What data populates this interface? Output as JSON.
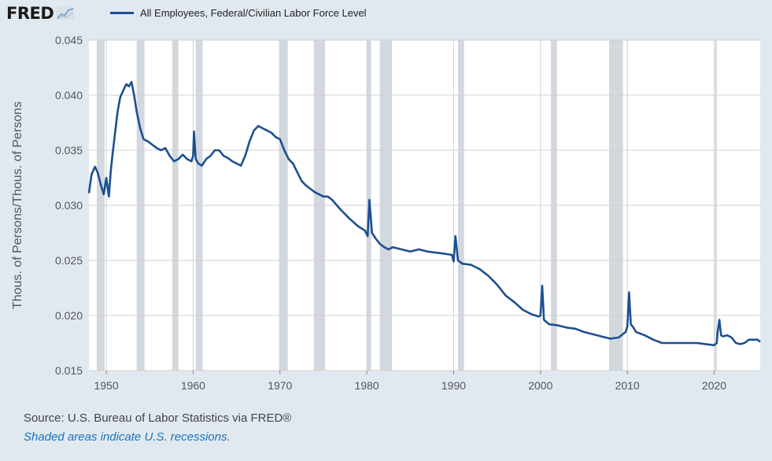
{
  "header": {
    "logo_text": "FRED",
    "logo_icon": "chart-line-icon"
  },
  "legend": {
    "label": "All Employees, Federal/Civilian Labor Force Level",
    "color": "#1d4f91"
  },
  "footer": {
    "source": "Source: U.S. Bureau of Labor Statistics via FRED®",
    "note": "Shaded areas indicate U.S. recessions."
  },
  "colors": {
    "background": "#e1e9f0",
    "plot_background": "#ffffff",
    "grid": "#d0d0d0",
    "recession": "#d3d8de",
    "line": "#1d4f91",
    "note": "#1a73c0"
  },
  "chart_data": {
    "type": "line",
    "ylabel": "Thous. of Persons/Thous. of Persons",
    "xlim": [
      1948,
      2025.3
    ],
    "ylim": [
      0.015,
      0.045
    ],
    "yticks": [
      0.015,
      0.02,
      0.025,
      0.03,
      0.035,
      0.04,
      0.045
    ],
    "ytick_labels": [
      "0.015",
      "0.020",
      "0.025",
      "0.030",
      "0.035",
      "0.040",
      "0.045"
    ],
    "xticks": [
      1950,
      1960,
      1970,
      1980,
      1990,
      2000,
      2010,
      2020
    ],
    "xtick_labels": [
      "1950",
      "1960",
      "1970",
      "1980",
      "1990",
      "2000",
      "2010",
      "2020"
    ],
    "grid": true,
    "recessions": [
      [
        1948.9,
        1949.8
      ],
      [
        1953.5,
        1954.4
      ],
      [
        1957.6,
        1958.3
      ],
      [
        1960.3,
        1961.1
      ],
      [
        1969.9,
        1970.9
      ],
      [
        1973.9,
        1975.2
      ],
      [
        1980.0,
        1980.5
      ],
      [
        1981.5,
        1982.9
      ],
      [
        1990.5,
        1991.2
      ],
      [
        2001.2,
        2001.9
      ],
      [
        2007.9,
        2009.5
      ],
      [
        2020.1,
        2020.3
      ]
    ],
    "series": [
      {
        "name": "All Employees, Federal/Civilian Labor Force Level",
        "x": [
          1948.0,
          1948.3,
          1948.7,
          1949.0,
          1949.4,
          1949.7,
          1950.0,
          1950.3,
          1950.5,
          1950.7,
          1951.0,
          1951.3,
          1951.6,
          1952.0,
          1952.3,
          1952.6,
          1952.9,
          1953.2,
          1953.5,
          1953.9,
          1954.3,
          1954.8,
          1955.3,
          1955.8,
          1956.3,
          1956.8,
          1957.3,
          1957.8,
          1958.3,
          1958.8,
          1959.3,
          1959.8,
          1960.0,
          1960.1,
          1960.3,
          1960.6,
          1961.0,
          1961.5,
          1962.0,
          1962.5,
          1963.0,
          1963.5,
          1964.0,
          1964.5,
          1965.0,
          1965.5,
          1966.0,
          1966.5,
          1967.0,
          1967.5,
          1968.0,
          1968.5,
          1969.0,
          1969.5,
          1970.0,
          1970.5,
          1971.0,
          1971.5,
          1972.0,
          1972.5,
          1973.0,
          1973.5,
          1974.0,
          1974.5,
          1975.0,
          1975.5,
          1976.0,
          1977.0,
          1978.0,
          1979.0,
          1979.8,
          1980.1,
          1980.3,
          1980.6,
          1981.0,
          1981.5,
          1982.0,
          1982.5,
          1983.0,
          1984.0,
          1985.0,
          1986.0,
          1987.0,
          1988.0,
          1989.0,
          1989.8,
          1990.0,
          1990.2,
          1990.5,
          1991.0,
          1992.0,
          1993.0,
          1994.0,
          1995.0,
          1996.0,
          1997.0,
          1998.0,
          1999.0,
          1999.8,
          2000.0,
          2000.2,
          2000.4,
          2000.7,
          2001.0,
          2002.0,
          2003.0,
          2004.0,
          2005.0,
          2006.0,
          2007.0,
          2008.0,
          2009.0,
          2009.8,
          2010.0,
          2010.2,
          2010.4,
          2010.7,
          2011.0,
          2012.0,
          2013.0,
          2014.0,
          2015.0,
          2016.0,
          2017.0,
          2018.0,
          2019.0,
          2020.0,
          2020.3,
          2020.4,
          2020.6,
          2020.8,
          2021.0,
          2021.5,
          2022.0,
          2022.5,
          2023.0,
          2023.5,
          2024.0,
          2024.5,
          2025.0,
          2025.3
        ],
        "y": [
          0.0311,
          0.0328,
          0.0335,
          0.033,
          0.0318,
          0.031,
          0.0325,
          0.0308,
          0.033,
          0.0345,
          0.0365,
          0.0385,
          0.0398,
          0.0405,
          0.041,
          0.0408,
          0.0412,
          0.04,
          0.0385,
          0.037,
          0.036,
          0.0358,
          0.0355,
          0.0352,
          0.035,
          0.0352,
          0.0345,
          0.034,
          0.0342,
          0.0346,
          0.0342,
          0.034,
          0.0345,
          0.0367,
          0.0342,
          0.0338,
          0.0336,
          0.0342,
          0.0345,
          0.035,
          0.035,
          0.0345,
          0.0343,
          0.034,
          0.0338,
          0.0336,
          0.0345,
          0.0358,
          0.0368,
          0.0372,
          0.037,
          0.0368,
          0.0366,
          0.0362,
          0.036,
          0.035,
          0.0342,
          0.0338,
          0.033,
          0.0322,
          0.0318,
          0.0315,
          0.0312,
          0.031,
          0.0308,
          0.0308,
          0.0305,
          0.0296,
          0.0288,
          0.0281,
          0.0277,
          0.0272,
          0.0305,
          0.0275,
          0.027,
          0.0265,
          0.0262,
          0.026,
          0.0262,
          0.026,
          0.0258,
          0.026,
          0.0258,
          0.0257,
          0.0256,
          0.0255,
          0.0249,
          0.0272,
          0.025,
          0.0247,
          0.0246,
          0.0242,
          0.0236,
          0.0228,
          0.0218,
          0.0212,
          0.0205,
          0.0201,
          0.0199,
          0.02,
          0.0227,
          0.0196,
          0.0194,
          0.0192,
          0.0191,
          0.0189,
          0.0188,
          0.0185,
          0.0183,
          0.0181,
          0.0179,
          0.018,
          0.0185,
          0.019,
          0.0221,
          0.0192,
          0.0189,
          0.0185,
          0.0182,
          0.0178,
          0.0175,
          0.0175,
          0.0175,
          0.0175,
          0.0175,
          0.0174,
          0.0173,
          0.0175,
          0.0185,
          0.0196,
          0.0182,
          0.0181,
          0.0182,
          0.018,
          0.0175,
          0.0174,
          0.0175,
          0.0178,
          0.0178,
          0.0178,
          0.0176
        ]
      }
    ]
  }
}
